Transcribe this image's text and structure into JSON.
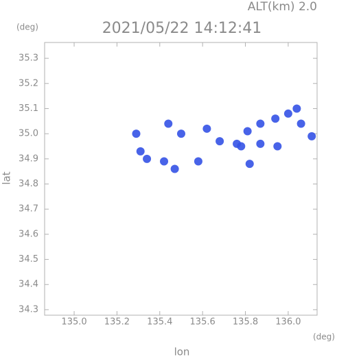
{
  "chart_data": {
    "type": "scatter",
    "header": "ALT(km) 2.0",
    "title": "2021/05/22 14:12:41",
    "y_unit": "(deg)",
    "x_unit": "(deg)",
    "xlabel": "lon",
    "ylabel": "lat",
    "x": [
      135.29,
      135.31,
      135.34,
      135.47,
      135.42,
      135.44,
      135.5,
      135.58,
      135.62,
      135.68,
      135.76,
      135.78,
      135.81,
      135.82,
      135.87,
      135.87,
      135.94,
      135.95,
      136.0,
      136.04,
      136.06,
      136.11
    ],
    "values": [
      35.0,
      34.93,
      34.9,
      34.86,
      34.89,
      35.04,
      35.0,
      34.89,
      35.02,
      34.97,
      34.96,
      34.95,
      35.01,
      34.88,
      35.04,
      34.96,
      35.06,
      34.95,
      35.08,
      35.1,
      35.04,
      34.99
    ],
    "color": "#3452e6",
    "xlim": [
      134.862,
      136.135
    ],
    "ylim": [
      34.278,
      35.363
    ],
    "xticks": [
      {
        "value": 135,
        "label": "135.0"
      },
      135.2,
      135.4,
      135.6,
      135.8,
      {
        "value": 136,
        "label": "136.0"
      }
    ],
    "yticks": [
      34.3,
      34.4,
      34.5,
      34.6,
      34.7,
      34.8,
      34.9,
      {
        "value": 35,
        "label": "35.0"
      },
      35.1,
      35.2,
      35.3
    ]
  }
}
